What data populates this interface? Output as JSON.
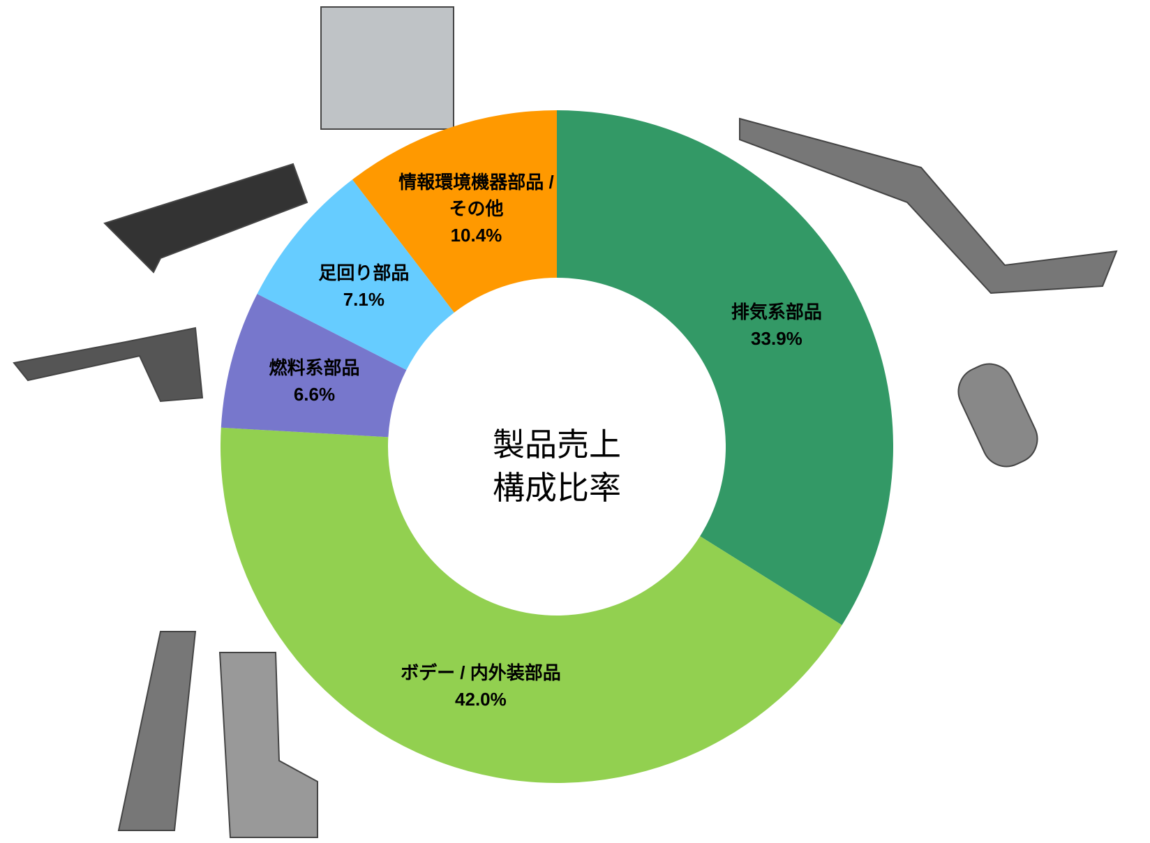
{
  "chart_data": {
    "type": "donut",
    "center_label": "製品売上構成比率",
    "categories": [
      "排気系部品",
      "ボデー / 内外装部品",
      "燃料系部品",
      "足回り部品",
      "情報環境機器部品 / その他"
    ],
    "values": [
      33.9,
      42.0,
      6.6,
      7.1,
      10.4
    ],
    "value_labels": [
      "33.9%",
      "42.0%",
      "6.6%",
      "7.1%",
      "10.4%"
    ],
    "colors": [
      "#339966",
      "#92d050",
      "#7777cc",
      "#66ccff",
      "#ff9900"
    ]
  }
}
